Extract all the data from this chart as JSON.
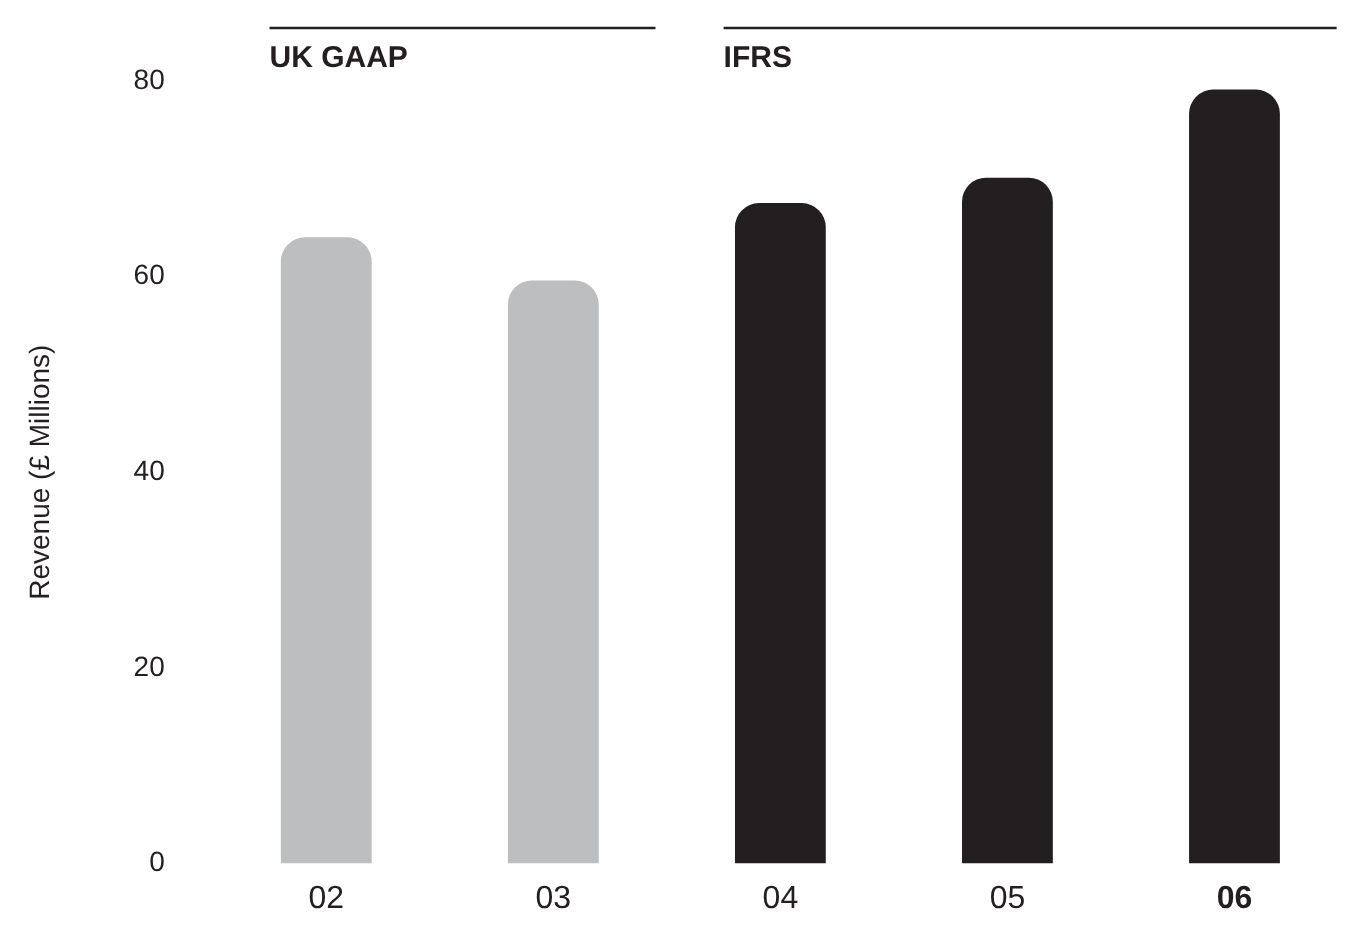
{
  "chart_data": {
    "type": "bar",
    "ylabel": "Revenue (£ Millions)",
    "categories": [
      "02",
      "03",
      "04",
      "05",
      "06"
    ],
    "series": [
      {
        "color": "#bcbec0",
        "values": [
          64,
          59.6,
          null,
          null,
          null
        ]
      },
      {
        "color": "#231f20",
        "values": [
          null,
          null,
          67.5,
          70.1,
          79.1
        ]
      }
    ],
    "annotations": [
      "UK GAAP",
      "IFRS"
    ],
    "ylim": [
      0,
      80
    ],
    "yticks": [
      0,
      20,
      40,
      60,
      80
    ],
    "grid": false,
    "legend": false
  }
}
